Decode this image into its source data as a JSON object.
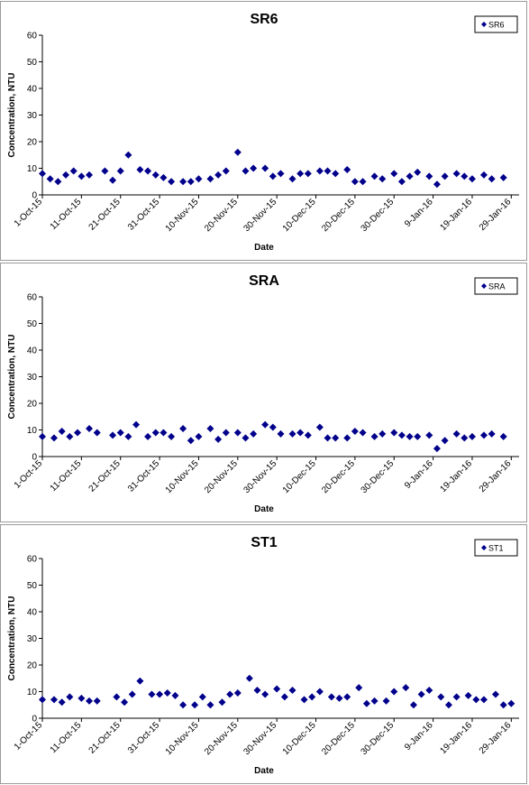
{
  "chart_data": [
    {
      "type": "scatter",
      "title": "SR6",
      "xlabel": "Date",
      "ylabel": "Concentration, NTU",
      "legend": [
        "SR6"
      ],
      "legend_position": "top-right",
      "color": "#00008b",
      "ylim": [
        0,
        60
      ],
      "yticks": [
        0,
        10,
        20,
        30,
        40,
        50,
        60
      ],
      "xlim": [
        "1-Oct-15",
        "31-Jan-16"
      ],
      "xticks": [
        "1-Oct-15",
        "11-Oct-15",
        "21-Oct-15",
        "31-Oct-15",
        "10-Nov-15",
        "20-Nov-15",
        "30-Nov-15",
        "10-Dec-15",
        "20-Dec-15",
        "30-Dec-15",
        "9-Jan-16",
        "19-Jan-16",
        "29-Jan-16"
      ],
      "grid": false,
      "series": [
        {
          "name": "SR6",
          "points": [
            [
              "2015-10-01",
              8
            ],
            [
              "2015-10-03",
              6
            ],
            [
              "2015-10-05",
              5
            ],
            [
              "2015-10-07",
              7.5
            ],
            [
              "2015-10-09",
              9
            ],
            [
              "2015-10-11",
              7
            ],
            [
              "2015-10-13",
              7.5
            ],
            [
              "2015-10-17",
              9
            ],
            [
              "2015-10-19",
              5.5
            ],
            [
              "2015-10-21",
              9
            ],
            [
              "2015-10-23",
              15
            ],
            [
              "2015-10-26",
              9.5
            ],
            [
              "2015-10-28",
              9
            ],
            [
              "2015-10-30",
              7.5
            ],
            [
              "2015-11-01",
              6.5
            ],
            [
              "2015-11-03",
              5
            ],
            [
              "2015-11-06",
              5
            ],
            [
              "2015-11-08",
              5
            ],
            [
              "2015-11-10",
              6
            ],
            [
              "2015-11-13",
              6
            ],
            [
              "2015-11-15",
              7.5
            ],
            [
              "2015-11-17",
              9
            ],
            [
              "2015-11-20",
              16
            ],
            [
              "2015-11-22",
              9
            ],
            [
              "2015-11-24",
              10
            ],
            [
              "2015-11-27",
              10
            ],
            [
              "2015-11-29",
              7
            ],
            [
              "2015-12-01",
              8
            ],
            [
              "2015-12-04",
              6
            ],
            [
              "2015-12-06",
              8
            ],
            [
              "2015-12-08",
              8
            ],
            [
              "2015-12-11",
              9
            ],
            [
              "2015-12-13",
              9
            ],
            [
              "2015-12-15",
              8
            ],
            [
              "2015-12-18",
              9.5
            ],
            [
              "2015-12-20",
              5
            ],
            [
              "2015-12-22",
              5
            ],
            [
              "2015-12-25",
              7
            ],
            [
              "2015-12-27",
              6
            ],
            [
              "2015-12-30",
              8
            ],
            [
              "2016-01-01",
              5
            ],
            [
              "2016-01-03",
              7
            ],
            [
              "2016-01-05",
              8.5
            ],
            [
              "2016-01-08",
              7
            ],
            [
              "2016-01-10",
              4
            ],
            [
              "2016-01-12",
              7
            ],
            [
              "2016-01-15",
              8
            ],
            [
              "2016-01-17",
              7
            ],
            [
              "2016-01-19",
              6
            ],
            [
              "2016-01-22",
              7.5
            ],
            [
              "2016-01-24",
              6
            ],
            [
              "2016-01-27",
              6.5
            ]
          ]
        }
      ]
    },
    {
      "type": "scatter",
      "title": "SRA",
      "xlabel": "Date",
      "ylabel": "Concentration, NTU",
      "legend": [
        "SRA"
      ],
      "legend_position": "top-right",
      "color": "#00008b",
      "ylim": [
        0,
        60
      ],
      "yticks": [
        0,
        10,
        20,
        30,
        40,
        50,
        60
      ],
      "xlim": [
        "1-Oct-15",
        "31-Jan-16"
      ],
      "xticks": [
        "1-Oct-15",
        "11-Oct-15",
        "21-Oct-15",
        "31-Oct-15",
        "10-Nov-15",
        "20-Nov-15",
        "30-Nov-15",
        "10-Dec-15",
        "20-Dec-15",
        "30-Dec-15",
        "9-Jan-16",
        "19-Jan-16",
        "29-Jan-16"
      ],
      "grid": false,
      "series": [
        {
          "name": "SRA",
          "points": [
            [
              "2015-10-01",
              7.5
            ],
            [
              "2015-10-04",
              7
            ],
            [
              "2015-10-06",
              9.5
            ],
            [
              "2015-10-08",
              7.5
            ],
            [
              "2015-10-10",
              9
            ],
            [
              "2015-10-13",
              10.5
            ],
            [
              "2015-10-15",
              9
            ],
            [
              "2015-10-19",
              8
            ],
            [
              "2015-10-21",
              9
            ],
            [
              "2015-10-23",
              7.5
            ],
            [
              "2015-10-25",
              12
            ],
            [
              "2015-10-28",
              7.5
            ],
            [
              "2015-10-30",
              9
            ],
            [
              "2015-11-01",
              9
            ],
            [
              "2015-11-03",
              7.5
            ],
            [
              "2015-11-06",
              10.5
            ],
            [
              "2015-11-08",
              6
            ],
            [
              "2015-11-10",
              7.5
            ],
            [
              "2015-11-13",
              10.5
            ],
            [
              "2015-11-15",
              6.5
            ],
            [
              "2015-11-17",
              9
            ],
            [
              "2015-11-20",
              9
            ],
            [
              "2015-11-22",
              7
            ],
            [
              "2015-11-24",
              8.5
            ],
            [
              "2015-11-27",
              12
            ],
            [
              "2015-11-29",
              11
            ],
            [
              "2015-12-01",
              8.5
            ],
            [
              "2015-12-04",
              8.5
            ],
            [
              "2015-12-06",
              9
            ],
            [
              "2015-12-08",
              8
            ],
            [
              "2015-12-11",
              11
            ],
            [
              "2015-12-13",
              7
            ],
            [
              "2015-12-15",
              7
            ],
            [
              "2015-12-18",
              7
            ],
            [
              "2015-12-20",
              9.5
            ],
            [
              "2015-12-22",
              9
            ],
            [
              "2015-12-25",
              7.5
            ],
            [
              "2015-12-27",
              8.5
            ],
            [
              "2015-12-30",
              9
            ],
            [
              "2016-01-01",
              8
            ],
            [
              "2016-01-03",
              7.5
            ],
            [
              "2016-01-05",
              7.5
            ],
            [
              "2016-01-08",
              8
            ],
            [
              "2016-01-10",
              3
            ],
            [
              "2016-01-12",
              6
            ],
            [
              "2016-01-15",
              8.5
            ],
            [
              "2016-01-17",
              7
            ],
            [
              "2016-01-19",
              7.5
            ],
            [
              "2016-01-22",
              8
            ],
            [
              "2016-01-24",
              8.5
            ],
            [
              "2016-01-27",
              7.5
            ]
          ]
        }
      ]
    },
    {
      "type": "scatter",
      "title": "ST1",
      "xlabel": "Date",
      "ylabel": "Concentration, NTU",
      "legend": [
        "ST1"
      ],
      "legend_position": "top-right",
      "color": "#00008b",
      "ylim": [
        0,
        60
      ],
      "yticks": [
        0,
        10,
        20,
        30,
        40,
        50,
        60
      ],
      "xlim": [
        "1-Oct-15",
        "31-Jan-16"
      ],
      "xticks": [
        "1-Oct-15",
        "11-Oct-15",
        "21-Oct-15",
        "31-Oct-15",
        "10-Nov-15",
        "20-Nov-15",
        "30-Nov-15",
        "10-Dec-15",
        "20-Dec-15",
        "30-Dec-15",
        "9-Jan-16",
        "19-Jan-16",
        "29-Jan-16"
      ],
      "grid": false,
      "series": [
        {
          "name": "ST1",
          "points": [
            [
              "2015-10-01",
              7
            ],
            [
              "2015-10-04",
              7
            ],
            [
              "2015-10-06",
              6
            ],
            [
              "2015-10-08",
              8
            ],
            [
              "2015-10-11",
              7.5
            ],
            [
              "2015-10-13",
              6.5
            ],
            [
              "2015-10-15",
              6.5
            ],
            [
              "2015-10-20",
              8
            ],
            [
              "2015-10-22",
              6
            ],
            [
              "2015-10-24",
              9
            ],
            [
              "2015-10-26",
              14
            ],
            [
              "2015-10-29",
              9
            ],
            [
              "2015-10-31",
              9
            ],
            [
              "2015-11-02",
              9.5
            ],
            [
              "2015-11-04",
              8.5
            ],
            [
              "2015-11-06",
              5
            ],
            [
              "2015-11-09",
              5
            ],
            [
              "2015-11-11",
              8
            ],
            [
              "2015-11-13",
              5
            ],
            [
              "2015-11-16",
              6
            ],
            [
              "2015-11-18",
              9
            ],
            [
              "2015-11-20",
              9.5
            ],
            [
              "2015-11-23",
              15
            ],
            [
              "2015-11-25",
              10.5
            ],
            [
              "2015-11-27",
              9
            ],
            [
              "2015-11-30",
              11
            ],
            [
              "2015-12-02",
              8
            ],
            [
              "2015-12-04",
              10.5
            ],
            [
              "2015-12-07",
              7
            ],
            [
              "2015-12-09",
              8
            ],
            [
              "2015-12-11",
              10
            ],
            [
              "2015-12-14",
              8
            ],
            [
              "2015-12-16",
              7.5
            ],
            [
              "2015-12-18",
              8
            ],
            [
              "2015-12-21",
              11.5
            ],
            [
              "2015-12-23",
              5.5
            ],
            [
              "2015-12-25",
              6.5
            ],
            [
              "2015-12-28",
              6.5
            ],
            [
              "2015-12-30",
              10
            ],
            [
              "2016-01-02",
              11.5
            ],
            [
              "2016-01-04",
              5
            ],
            [
              "2016-01-06",
              9
            ],
            [
              "2016-01-08",
              10.5
            ],
            [
              "2016-01-11",
              8
            ],
            [
              "2016-01-13",
              5
            ],
            [
              "2016-01-15",
              8
            ],
            [
              "2016-01-18",
              8.5
            ],
            [
              "2016-01-20",
              7
            ],
            [
              "2016-01-22",
              7
            ],
            [
              "2016-01-25",
              9
            ],
            [
              "2016-01-27",
              5
            ],
            [
              "2016-01-29",
              5.5
            ]
          ]
        }
      ]
    }
  ]
}
